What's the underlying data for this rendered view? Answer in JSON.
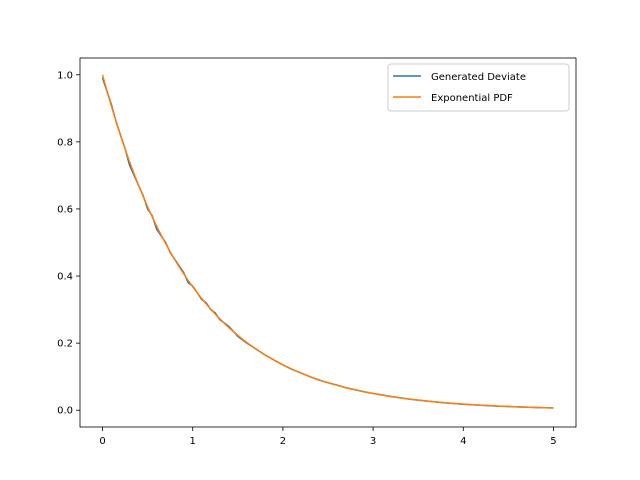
{
  "chart_data": {
    "type": "line",
    "title": "",
    "xlabel": "",
    "ylabel": "",
    "xlim": [
      -0.25,
      5.25
    ],
    "ylim": [
      -0.05,
      1.05
    ],
    "x_ticks": [
      0,
      1,
      2,
      3,
      4,
      5
    ],
    "x_tick_labels": [
      "0",
      "1",
      "2",
      "3",
      "4",
      "5"
    ],
    "y_ticks": [
      0.0,
      0.2,
      0.4,
      0.6,
      0.8,
      1.0
    ],
    "y_tick_labels": [
      "0.0",
      "0.2",
      "0.4",
      "0.6",
      "0.8",
      "1.0"
    ],
    "grid": false,
    "legend_position": "top-right",
    "series": [
      {
        "name": "Generated Deviate",
        "color": "#1f77b4",
        "x": [
          0.0,
          0.05,
          0.1,
          0.15,
          0.2,
          0.25,
          0.3,
          0.35,
          0.4,
          0.45,
          0.5,
          0.55,
          0.6,
          0.65,
          0.7,
          0.75,
          0.8,
          0.85,
          0.9,
          0.95,
          1.0,
          1.05,
          1.1,
          1.15,
          1.2,
          1.25,
          1.3,
          1.35,
          1.4,
          1.45,
          1.5,
          1.6,
          1.7,
          1.8,
          1.9,
          2.0,
          2.1,
          2.2,
          2.3,
          2.4,
          2.5,
          2.6,
          2.7,
          2.8,
          2.9,
          3.0,
          3.2,
          3.4,
          3.6,
          3.8,
          4.0,
          4.2,
          4.4,
          4.6,
          4.8,
          5.0
        ],
        "y": [
          0.99,
          0.95,
          0.91,
          0.86,
          0.82,
          0.78,
          0.73,
          0.7,
          0.67,
          0.64,
          0.6,
          0.58,
          0.54,
          0.52,
          0.5,
          0.47,
          0.45,
          0.43,
          0.41,
          0.38,
          0.37,
          0.35,
          0.33,
          0.32,
          0.3,
          0.29,
          0.27,
          0.26,
          0.25,
          0.235,
          0.22,
          0.2,
          0.183,
          0.165,
          0.15,
          0.135,
          0.122,
          0.111,
          0.1,
          0.09,
          0.082,
          0.075,
          0.067,
          0.061,
          0.055,
          0.05,
          0.041,
          0.033,
          0.027,
          0.022,
          0.018,
          0.015,
          0.012,
          0.01,
          0.008,
          0.0067
        ]
      },
      {
        "name": "Exponential PDF",
        "color": "#ff7f0e",
        "function": "exp(-x)",
        "x_range": [
          0,
          5
        ]
      }
    ]
  }
}
